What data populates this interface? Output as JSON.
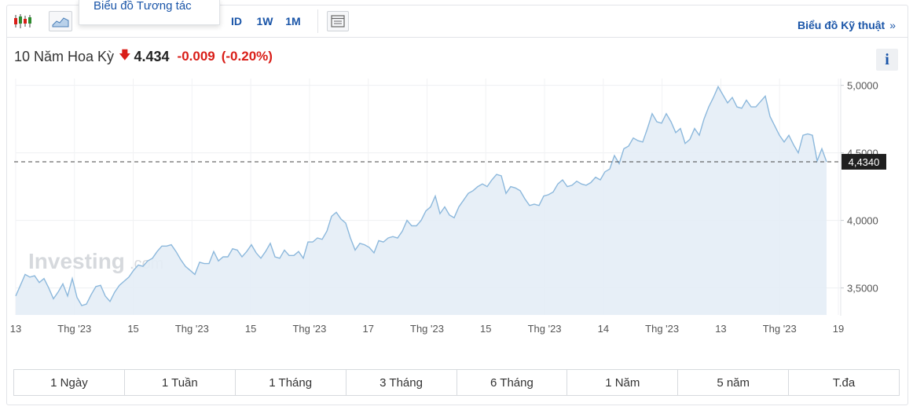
{
  "toolbar": {
    "dropdown_item": "Biểu đồ Tương tác",
    "intervals": [
      "ID",
      "1W",
      "1M"
    ],
    "technical_link": "Biểu đồ Kỹ thuật",
    "technical_chevron": "»"
  },
  "quote": {
    "name": "10 Năm Hoa Kỳ",
    "arrow": "🡇",
    "price": "4.434",
    "change": "-0.009",
    "change_pct": "(-0.20%)"
  },
  "info_label": "i",
  "watermark": {
    "brand": "Investing",
    "suffix": ".com"
  },
  "ranges": [
    "1 Ngày",
    "1 Tuần",
    "1 Tháng",
    "3 Tháng",
    "6 Tháng",
    "1 Năm",
    "5 năm",
    "T.đa"
  ],
  "colors": {
    "accent": "#1a55a8",
    "down": "#d91e18",
    "line": "#8cb8dc",
    "area": "#e4edf6"
  },
  "chart_data": {
    "type": "area",
    "ylim": [
      3.3,
      5.05
    ],
    "yticks": [
      "5,0000",
      "4,5000",
      "4,0000",
      "3,5000"
    ],
    "ytick_values": [
      5.0,
      4.5,
      4.0,
      3.5
    ],
    "xticks": [
      "13",
      "Thg '23",
      "15",
      "Thg '23",
      "15",
      "Thg '23",
      "17",
      "Thg '23",
      "15",
      "Thg '23",
      "14",
      "Thg '23",
      "13",
      "Thg '23",
      "19"
    ],
    "current_value": 4.434,
    "current_label": "4,4340",
    "grid": true,
    "values": [
      3.44,
      3.52,
      3.6,
      3.58,
      3.59,
      3.54,
      3.57,
      3.5,
      3.42,
      3.47,
      3.53,
      3.44,
      3.57,
      3.43,
      3.37,
      3.38,
      3.45,
      3.51,
      3.52,
      3.44,
      3.4,
      3.47,
      3.52,
      3.55,
      3.58,
      3.63,
      3.67,
      3.66,
      3.7,
      3.72,
      3.77,
      3.81,
      3.81,
      3.82,
      3.77,
      3.71,
      3.66,
      3.63,
      3.6,
      3.69,
      3.68,
      3.68,
      3.77,
      3.7,
      3.73,
      3.73,
      3.79,
      3.78,
      3.73,
      3.77,
      3.82,
      3.76,
      3.72,
      3.77,
      3.83,
      3.73,
      3.72,
      3.78,
      3.74,
      3.74,
      3.77,
      3.72,
      3.84,
      3.84,
      3.87,
      3.86,
      3.92,
      4.03,
      4.06,
      4.01,
      3.98,
      3.87,
      3.78,
      3.83,
      3.82,
      3.8,
      3.76,
      3.85,
      3.84,
      3.87,
      3.88,
      3.87,
      3.92,
      4.0,
      3.96,
      3.96,
      4.0,
      4.07,
      4.1,
      4.18,
      4.05,
      4.1,
      4.04,
      4.02,
      4.1,
      4.15,
      4.2,
      4.22,
      4.25,
      4.27,
      4.25,
      4.3,
      4.34,
      4.33,
      4.2,
      4.25,
      4.24,
      4.22,
      4.16,
      4.11,
      4.12,
      4.11,
      4.18,
      4.19,
      4.21,
      4.27,
      4.3,
      4.25,
      4.26,
      4.29,
      4.27,
      4.26,
      4.28,
      4.32,
      4.3,
      4.36,
      4.38,
      4.48,
      4.42,
      4.53,
      4.55,
      4.61,
      4.59,
      4.58,
      4.68,
      4.79,
      4.73,
      4.72,
      4.79,
      4.73,
      4.65,
      4.68,
      4.57,
      4.6,
      4.68,
      4.63,
      4.75,
      4.84,
      4.91,
      4.99,
      4.93,
      4.87,
      4.91,
      4.84,
      4.83,
      4.89,
      4.84,
      4.84,
      4.88,
      4.92,
      4.77,
      4.7,
      4.63,
      4.58,
      4.63,
      4.56,
      4.5,
      4.63,
      4.64,
      4.63,
      4.44,
      4.53,
      4.434
    ]
  }
}
